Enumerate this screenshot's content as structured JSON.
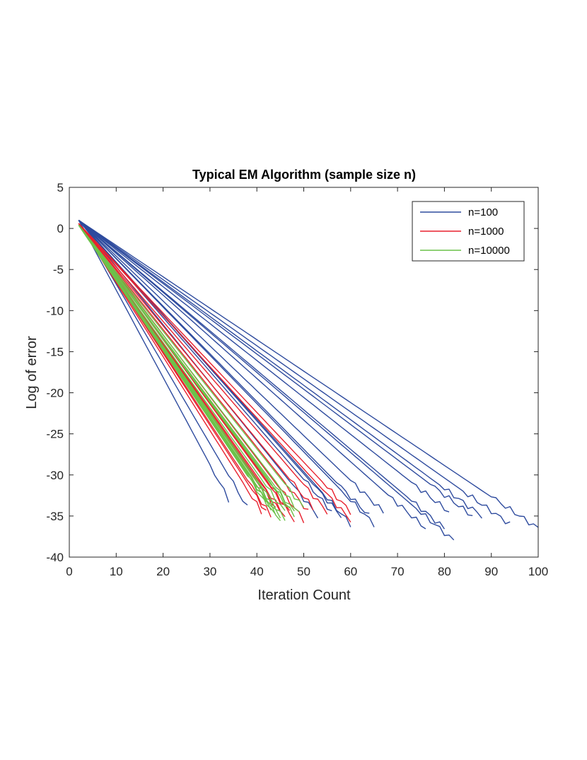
{
  "chart_data": {
    "type": "line",
    "title": "Typical EM Algorithm (sample size n)",
    "xlabel": "Iteration Count",
    "ylabel": "Log of error",
    "xlim": [
      0,
      100
    ],
    "ylim": [
      -40,
      5
    ],
    "xticks": [
      0,
      10,
      20,
      30,
      40,
      50,
      60,
      70,
      80,
      90,
      100
    ],
    "yticks": [
      5,
      0,
      -5,
      -10,
      -15,
      -20,
      -25,
      -30,
      -35,
      -40
    ],
    "xtick_labels": [
      "0",
      "10",
      "20",
      "30",
      "40",
      "50",
      "60",
      "70",
      "80",
      "90",
      "100"
    ],
    "ytick_labels": [
      "5",
      "0",
      "-5",
      "-10",
      "-15",
      "-20",
      "-25",
      "-30",
      "-35",
      "-40"
    ],
    "grid": false,
    "legend_position": "top-right",
    "series": [
      {
        "name": "n=100",
        "color": "#2E4B9E",
        "runs": [
          {
            "start": 1.0,
            "end_x": 34,
            "end_y": -33.0
          },
          {
            "start": 1.0,
            "end_x": 38,
            "end_y": -34.0
          },
          {
            "start": 1.0,
            "end_x": 53,
            "end_y": -35.0
          },
          {
            "start": 1.0,
            "end_x": 56,
            "end_y": -34.5
          },
          {
            "start": 1.0,
            "end_x": 58,
            "end_y": -35.0
          },
          {
            "start": 1.0,
            "end_x": 60,
            "end_y": -36.0
          },
          {
            "start": 1.0,
            "end_x": 64,
            "end_y": -35.0
          },
          {
            "start": 1.0,
            "end_x": 65,
            "end_y": -36.0
          },
          {
            "start": 1.0,
            "end_x": 67,
            "end_y": -34.5
          },
          {
            "start": 1.0,
            "end_x": 76,
            "end_y": -36.5
          },
          {
            "start": 1.0,
            "end_x": 80,
            "end_y": -36.5
          },
          {
            "start": 1.0,
            "end_x": 81,
            "end_y": -34.5
          },
          {
            "start": 1.0,
            "end_x": 82,
            "end_y": -38.0
          },
          {
            "start": 1.0,
            "end_x": 86,
            "end_y": -35.0
          },
          {
            "start": 1.0,
            "end_x": 88,
            "end_y": -35.0
          },
          {
            "start": 1.0,
            "end_x": 94,
            "end_y": -36.0
          },
          {
            "start": 1.0,
            "end_x": 100,
            "end_y": -36.5
          }
        ]
      },
      {
        "name": "n=1000",
        "color": "#E8212E",
        "runs": [
          {
            "start": 0.6,
            "end_x": 41,
            "end_y": -34.5
          },
          {
            "start": 0.6,
            "end_x": 42,
            "end_y": -34.5
          },
          {
            "start": 0.6,
            "end_x": 43,
            "end_y": -35.0
          },
          {
            "start": 0.6,
            "end_x": 44,
            "end_y": -34.0
          },
          {
            "start": 0.6,
            "end_x": 45,
            "end_y": -34.5
          },
          {
            "start": 0.6,
            "end_x": 46,
            "end_y": -35.0
          },
          {
            "start": 0.6,
            "end_x": 47,
            "end_y": -34.5
          },
          {
            "start": 0.6,
            "end_x": 48,
            "end_y": -35.5
          },
          {
            "start": 0.6,
            "end_x": 50,
            "end_y": -35.5
          },
          {
            "start": 0.6,
            "end_x": 51,
            "end_y": -34.5
          },
          {
            "start": 0.6,
            "end_x": 52,
            "end_y": -34.0
          },
          {
            "start": 0.6,
            "end_x": 55,
            "end_y": -34.5
          },
          {
            "start": 0.6,
            "end_x": 60,
            "end_y": -34.5
          },
          {
            "start": 0.6,
            "end_x": 60,
            "end_y": -35.5
          }
        ]
      },
      {
        "name": "n=10000",
        "color": "#6CC24A",
        "runs": [
          {
            "start": 0.4,
            "end_x": 42,
            "end_y": -33.5
          },
          {
            "start": 0.4,
            "end_x": 43,
            "end_y": -34.0
          },
          {
            "start": 0.4,
            "end_x": 44,
            "end_y": -34.5
          },
          {
            "start": 0.4,
            "end_x": 44,
            "end_y": -35.0
          },
          {
            "start": 0.4,
            "end_x": 45,
            "end_y": -35.0
          },
          {
            "start": 0.4,
            "end_x": 45,
            "end_y": -35.5
          },
          {
            "start": 0.4,
            "end_x": 46,
            "end_y": -34.5
          },
          {
            "start": 0.4,
            "end_x": 46,
            "end_y": -35.5
          },
          {
            "start": 0.4,
            "end_x": 47,
            "end_y": -34.0
          },
          {
            "start": 0.4,
            "end_x": 48,
            "end_y": -34.5
          },
          {
            "start": 0.4,
            "end_x": 48,
            "end_y": -35.0
          },
          {
            "start": 0.4,
            "end_x": 49,
            "end_y": -34.5
          },
          {
            "start": 0.4,
            "end_x": 50,
            "end_y": -34.0
          }
        ]
      }
    ]
  }
}
